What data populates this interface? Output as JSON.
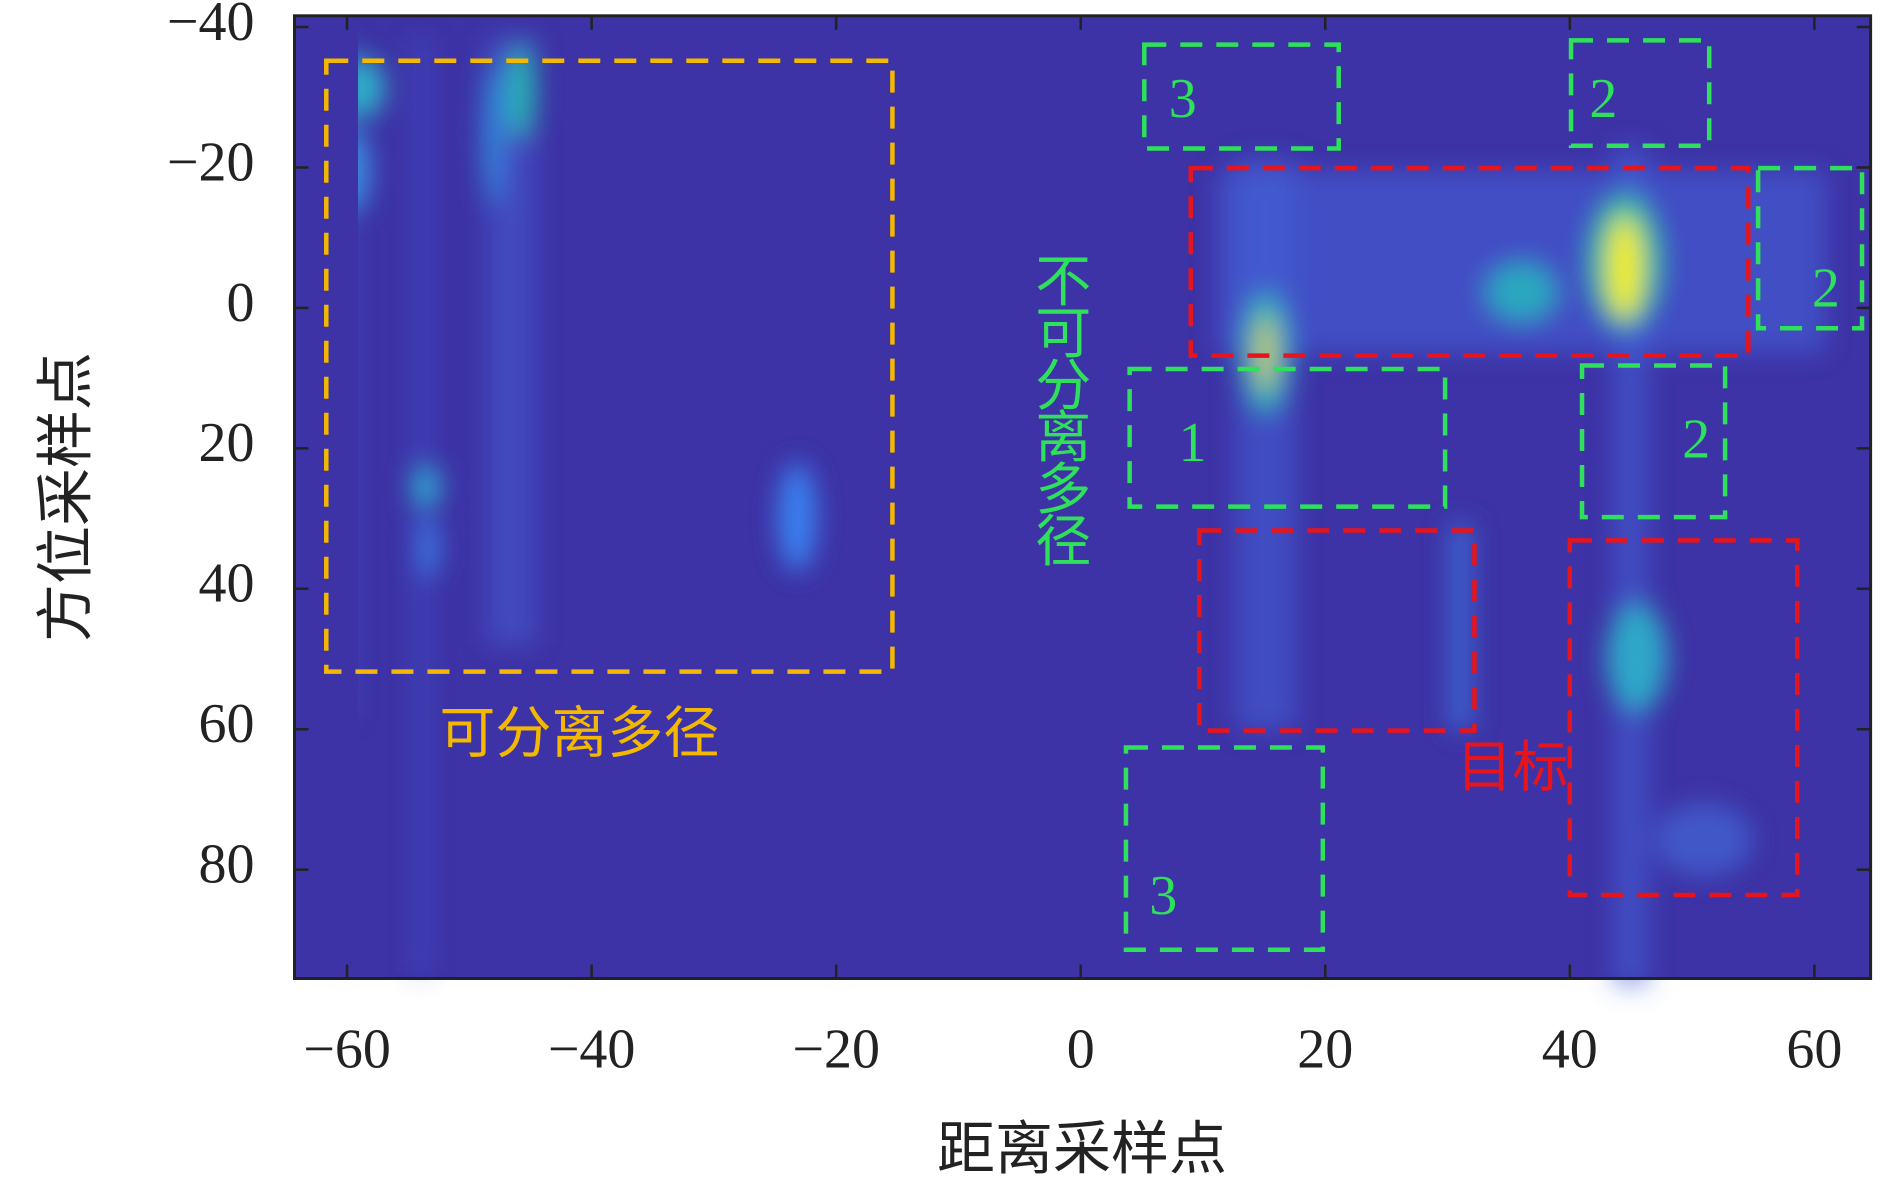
{
  "chart_data": {
    "type": "heatmap",
    "xlabel": "距离采样点",
    "ylabel": "方位采样点",
    "xlim": [
      -64.3,
      64.6
    ],
    "ylim": [
      -41.6,
      95.5
    ],
    "y_inverted": true,
    "xticks": [
      {
        "value": -60,
        "label": "−60"
      },
      {
        "value": -40,
        "label": "−40"
      },
      {
        "value": -20,
        "label": "−20"
      },
      0,
      20,
      40,
      60
    ],
    "yticks": [
      {
        "value": -40,
        "label": "−40"
      },
      {
        "value": -20,
        "label": "−20"
      },
      0,
      20,
      40,
      60,
      80
    ],
    "annotations": [
      {
        "text": "可分离多径",
        "color": "#f5b800",
        "region": [
          -61.7,
          -15.4,
          -35.2,
          51.8
        ],
        "at": [
          -41,
          61.5
        ]
      },
      {
        "text": "不可分离多径",
        "color": "#2ee05a",
        "vertical": true,
        "at": [
          -2.3,
          -8
        ]
      },
      {
        "text": "目标",
        "color": "#e8141c",
        "at": [
          35.3,
          66.3
        ]
      },
      {
        "text": "3",
        "color": "#2ee05a",
        "region": [
          5.2,
          21.1,
          -37.5,
          -22.7
        ],
        "at": [
          7.2,
          -29
        ]
      },
      {
        "text": "2",
        "color": "#2ee05a",
        "region": [
          40.1,
          51.4,
          -38.1,
          -23.1
        ],
        "at": [
          41.6,
          -29
        ]
      },
      {
        "text": "2",
        "color": "#2ee05a",
        "region": [
          55.4,
          63.9,
          -19.9,
          2.9
        ],
        "at": [
          59.8,
          -2
        ]
      },
      {
        "text": "1",
        "color": "#2ee05a",
        "region": [
          4.0,
          29.8,
          8.7,
          28.3
        ],
        "at": [
          8,
          20
        ]
      },
      {
        "text": "2",
        "color": "#2ee05a",
        "region": [
          41.0,
          52.7,
          8.2,
          29.8
        ],
        "at": [
          49.2,
          19.5
        ]
      },
      {
        "text": "3",
        "color": "#2ee05a",
        "region": [
          3.7,
          19.8,
          62.6,
          91.4
        ],
        "at": [
          5.6,
          84.5
        ]
      },
      {
        "color": "#e8141c",
        "region": [
          9.0,
          54.6,
          -19.9,
          6.8
        ]
      },
      {
        "color": "#e8141c",
        "region": [
          9.7,
          32.2,
          31.7,
          60.2
        ]
      },
      {
        "color": "#e8141c",
        "region": [
          40.0,
          58.6,
          33.1,
          83.6
        ]
      }
    ]
  }
}
